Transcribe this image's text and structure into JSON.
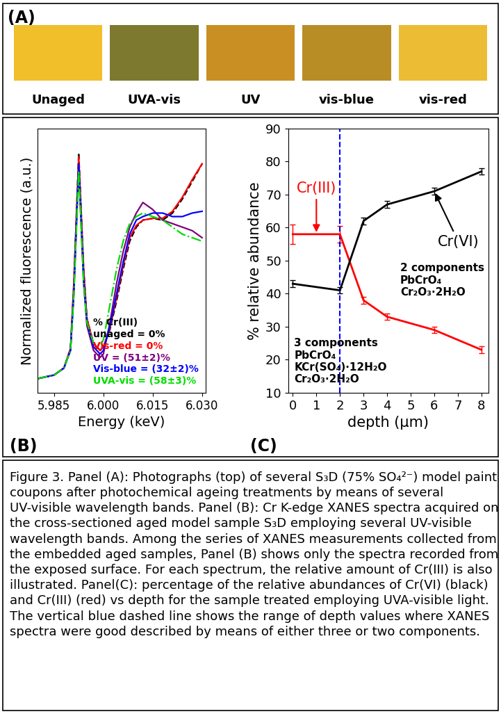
{
  "panel_a": {
    "panel_label": "(A)",
    "swatches": [
      {
        "label": "Unaged",
        "color": "#f0bf2a"
      },
      {
        "label": "UVA-vis",
        "color": "#7d7a30"
      },
      {
        "label": "UV",
        "color": "#c98f22"
      },
      {
        "label": "vis-blue",
        "color": "#b88d25"
      },
      {
        "label": "vis-red",
        "color": "#ecbd34"
      }
    ]
  },
  "chart_data": [
    {
      "type": "line",
      "panel_label": "(B)",
      "xlabel": "Energy (keV)",
      "ylabel": "Normalized fluorescence (a.u.)",
      "x": [
        5.98,
        5.985,
        5.988,
        5.99,
        5.991,
        5.9925,
        5.994,
        5.995,
        5.997,
        5.999,
        6.0,
        6.002,
        6.004,
        6.006,
        6.008,
        6.01,
        6.012,
        6.015,
        6.018,
        6.021,
        6.024,
        6.027,
        6.03
      ],
      "xlim": [
        5.98,
        6.031
      ],
      "xticks": [
        5.985,
        {
          "value": 6.0,
          "label": "6.000"
        },
        6.015,
        {
          "value": 6.03,
          "label": "6.030"
        }
      ],
      "ylim": [
        0,
        1.5
      ],
      "yticks": [],
      "tick_labels": "x",
      "legend": "lower right",
      "legend_title": "% Cr(III)",
      "series": [
        {
          "name": "unaged = 0%",
          "color": "#000000",
          "line_style": "dashed",
          "values": [
            0.08,
            0.1,
            0.14,
            0.25,
            0.6,
            1.36,
            0.7,
            0.42,
            0.28,
            0.24,
            0.26,
            0.36,
            0.52,
            0.7,
            0.86,
            0.94,
            0.98,
            0.99,
            0.98,
            1.02,
            1.1,
            1.2,
            1.3
          ]
        },
        {
          "name": "Vis-red = 0%",
          "color": "#ff0000",
          "line_style": "solid",
          "values": [
            0.08,
            0.1,
            0.14,
            0.25,
            0.62,
            1.34,
            0.7,
            0.42,
            0.28,
            0.24,
            0.26,
            0.37,
            0.54,
            0.72,
            0.88,
            0.95,
            0.98,
            0.99,
            0.99,
            1.03,
            1.11,
            1.21,
            1.3
          ]
        },
        {
          "name": "UV = (51±2)%",
          "color": "#800080",
          "line_style": "solid",
          "values": [
            0.08,
            0.1,
            0.14,
            0.24,
            0.55,
            1.28,
            0.62,
            0.38,
            0.24,
            0.2,
            0.22,
            0.4,
            0.62,
            0.8,
            0.94,
            1.02,
            1.08,
            1.04,
            0.98,
            0.96,
            0.94,
            0.92,
            0.88
          ]
        },
        {
          "name": "Vis-blue = (32±2)%",
          "color": "#0000ff",
          "line_style": "solid",
          "values": [
            0.08,
            0.1,
            0.14,
            0.24,
            0.57,
            1.3,
            0.65,
            0.4,
            0.26,
            0.22,
            0.24,
            0.38,
            0.56,
            0.74,
            0.9,
            0.98,
            1.0,
            1.02,
            1.02,
            1.0,
            1.0,
            1.02,
            1.03
          ]
        },
        {
          "name": "UVA-vis = (58±3)%",
          "color": "#00dd00",
          "line_style": "dashdot",
          "values": [
            0.08,
            0.1,
            0.14,
            0.24,
            0.55,
            1.26,
            0.62,
            0.4,
            0.28,
            0.27,
            0.3,
            0.5,
            0.7,
            0.86,
            0.96,
            1.0,
            1.02,
            1.0,
            0.98,
            0.94,
            0.9,
            0.88,
            0.86
          ]
        }
      ]
    },
    {
      "type": "line",
      "panel_label": "(C)",
      "xlabel": "depth (μm)",
      "ylabel": "% relative abundance",
      "x": [
        0,
        2,
        3,
        4,
        6,
        8
      ],
      "xlim": [
        -0.2,
        8.3
      ],
      "xticks": [
        0,
        1,
        2,
        3,
        4,
        5,
        6,
        7,
        8
      ],
      "ylim": [
        10,
        90
      ],
      "yticks": [
        10,
        20,
        30,
        40,
        50,
        60,
        70,
        80,
        90
      ],
      "vline": 2,
      "series": [
        {
          "name": "Cr(III)",
          "color": "#ff0000",
          "line_style": "solid",
          "values": [
            58,
            58,
            38,
            33,
            29,
            23
          ],
          "errors": [
            3,
            2.5,
            1,
            1,
            1,
            1
          ]
        },
        {
          "name": "Cr(VI)",
          "color": "#000000",
          "line_style": "solid",
          "values": [
            43,
            41,
            62,
            67,
            71,
            77
          ],
          "errors": [
            1,
            1,
            1,
            1,
            1,
            1
          ]
        }
      ],
      "annotations": [
        {
          "text": "3 components\nPbCrO₄\nKCr(SO₄)·12H₂O\nCr₂O₃·2H₂O"
        },
        {
          "text": "2 components\nPbCrO₄\nCr₂O₃·2H₂O"
        }
      ]
    }
  ],
  "caption": "Figure 3. Panel (A): Photographs (top) of several S₃D (75% SO₄²⁻) model paint coupons after photochemical ageing treatments by means of several UV-visible wavelength bands. Panel (B): Cr K-edge XANES spectra acquired on the cross-sectioned aged model sample S₃D employing several UV-visible wavelength bands. Among the series of XANES measurements collected from the embedded aged samples, Panel (B) shows only the spectra recorded from the exposed surface. For each spectrum, the relative amount of Cr(III) is also illustrated. Panel(C): percentage of the relative abundances of Cr(VI) (black) and Cr(III) (red) vs depth for the sample treated employing UVA-visible light. The vertical blue dashed line shows the range of depth values where XANES spectra were good described by means of either three or two components."
}
